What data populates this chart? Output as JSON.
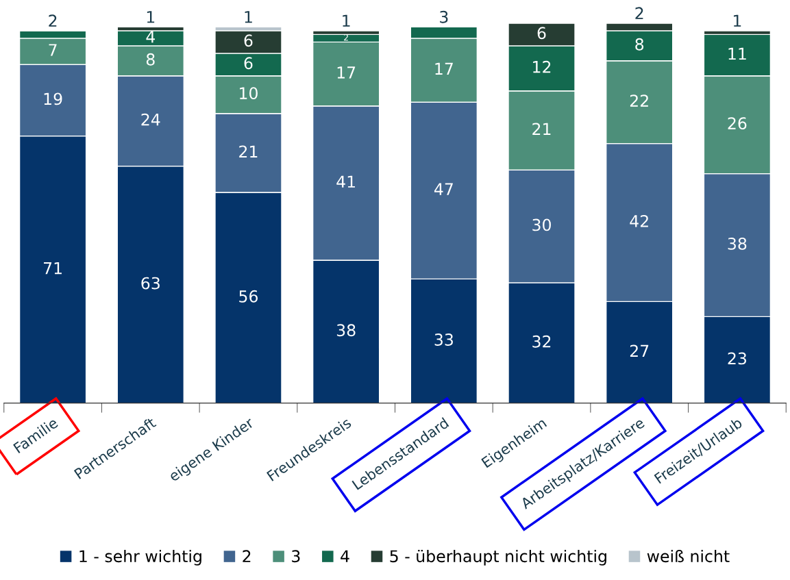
{
  "chart_data": {
    "type": "bar",
    "stacked": true,
    "data_labels": true,
    "legend": "bottom",
    "tick_labels": "x",
    "grid": false,
    "categories": [
      "Familie",
      "Partnerschaft",
      "eigene Kinder",
      "Freundeskreis",
      "Lebensstandard",
      "Eigenheim",
      "Arbeitsplatz/Karriere",
      "Freizeit/Urlaub"
    ],
    "series": [
      {
        "name": "1 - sehr wichtig",
        "color": "#05346a",
        "values": [
          71,
          63,
          56,
          38,
          33,
          32,
          27,
          23
        ]
      },
      {
        "name": "2",
        "color": "#41658f",
        "values": [
          19,
          24,
          21,
          41,
          47,
          30,
          42,
          38
        ]
      },
      {
        "name": "3",
        "color": "#4d8f7a",
        "values": [
          7,
          8,
          10,
          17,
          17,
          21,
          22,
          26
        ]
      },
      {
        "name": "4",
        "color": "#13694f",
        "values": [
          2,
          4,
          6,
          2,
          3,
          12,
          8,
          11
        ]
      },
      {
        "name": "5 - überhaupt nicht wichtig",
        "color": "#263d33",
        "values": [
          null,
          1,
          6,
          1,
          null,
          6,
          2,
          1
        ]
      },
      {
        "name": "weiß nicht",
        "color": "#b8c4cc",
        "values": [
          null,
          null,
          1,
          null,
          null,
          null,
          null,
          null
        ]
      }
    ]
  }
}
